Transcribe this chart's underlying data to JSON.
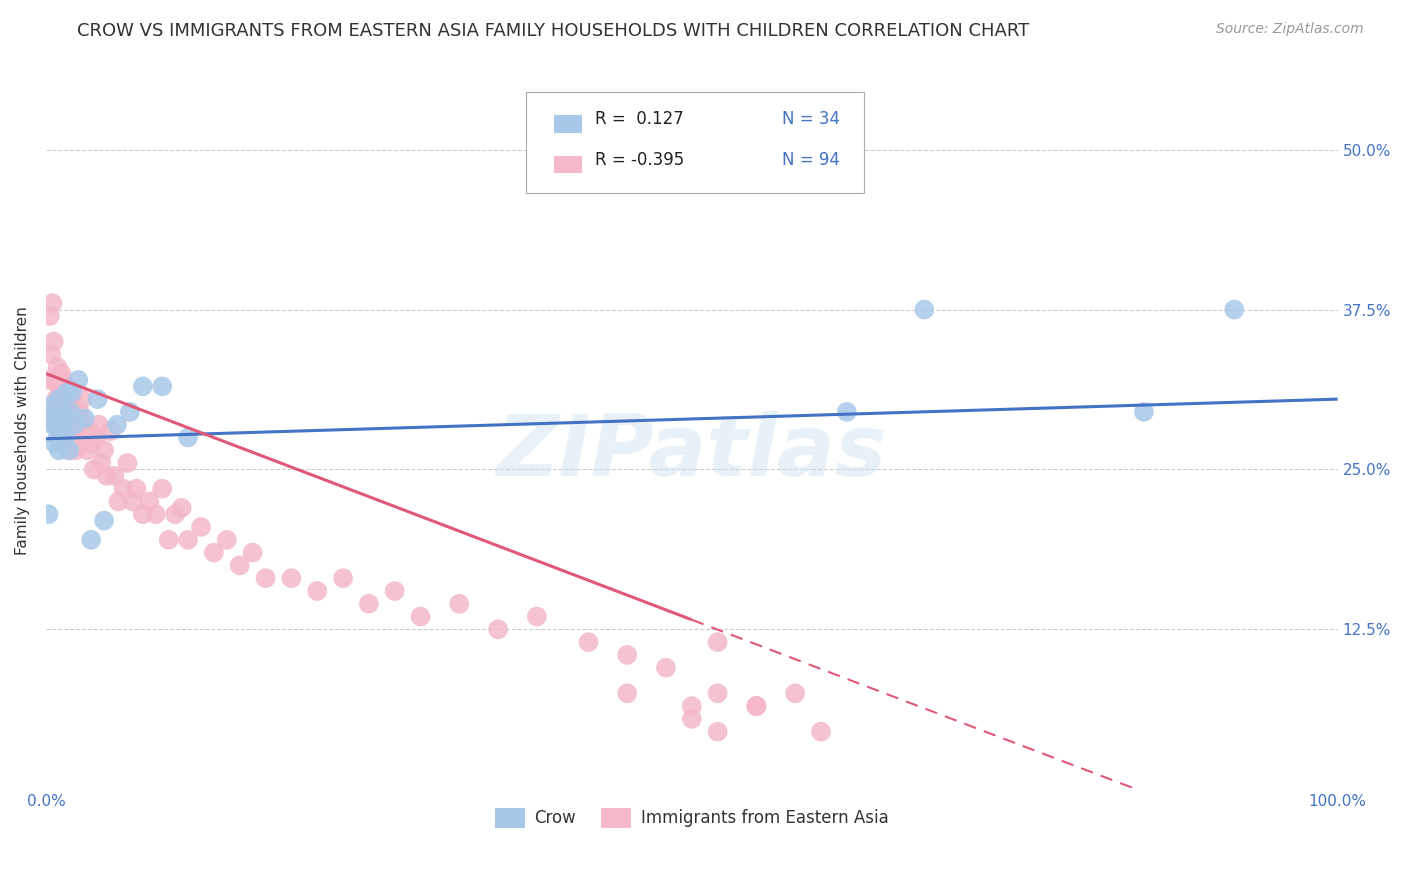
{
  "title": "CROW VS IMMIGRANTS FROM EASTERN ASIA FAMILY HOUSEHOLDS WITH CHILDREN CORRELATION CHART",
  "source": "Source: ZipAtlas.com",
  "ylabel": "Family Households with Children",
  "xlim": [
    0.0,
    1.0
  ],
  "ylim": [
    0.0,
    0.56
  ],
  "x_ticks": [
    0.0,
    0.1,
    0.2,
    0.3,
    0.4,
    0.5,
    0.6,
    0.7,
    0.8,
    0.9,
    1.0
  ],
  "x_tick_labels": [
    "0.0%",
    "",
    "",
    "",
    "",
    "",
    "",
    "",
    "",
    "",
    "100.0%"
  ],
  "y_ticks": [
    0.0,
    0.125,
    0.25,
    0.375,
    0.5
  ],
  "y_tick_labels": [
    "",
    "12.5%",
    "25.0%",
    "37.5%",
    "50.0%"
  ],
  "crow_color": "#a8c8e8",
  "immigrants_color": "#f4b8c8",
  "crow_line_color": "#4472c4",
  "immigrants_line_color": "#e05878",
  "crow_R": 0.127,
  "crow_N": 34,
  "immigrants_R": -0.395,
  "immigrants_N": 94,
  "crow_scatter_x": [
    0.002,
    0.003,
    0.004,
    0.005,
    0.006,
    0.007,
    0.008,
    0.009,
    0.01,
    0.01,
    0.011,
    0.012,
    0.013,
    0.014,
    0.015,
    0.016,
    0.018,
    0.019,
    0.02,
    0.022,
    0.025,
    0.03,
    0.035,
    0.04,
    0.045,
    0.055,
    0.065,
    0.075,
    0.09,
    0.11,
    0.62,
    0.68,
    0.85,
    0.92
  ],
  "crow_scatter_y": [
    0.215,
    0.29,
    0.3,
    0.285,
    0.295,
    0.27,
    0.285,
    0.275,
    0.305,
    0.265,
    0.29,
    0.28,
    0.295,
    0.285,
    0.275,
    0.31,
    0.265,
    0.295,
    0.31,
    0.285,
    0.32,
    0.29,
    0.195,
    0.305,
    0.21,
    0.285,
    0.295,
    0.315,
    0.315,
    0.275,
    0.295,
    0.375,
    0.295,
    0.375
  ],
  "immigrants_scatter_x": [
    0.002,
    0.003,
    0.004,
    0.005,
    0.006,
    0.007,
    0.008,
    0.008,
    0.009,
    0.009,
    0.01,
    0.01,
    0.011,
    0.011,
    0.012,
    0.012,
    0.013,
    0.013,
    0.014,
    0.015,
    0.015,
    0.016,
    0.016,
    0.017,
    0.017,
    0.018,
    0.018,
    0.019,
    0.019,
    0.02,
    0.021,
    0.021,
    0.022,
    0.023,
    0.023,
    0.024,
    0.025,
    0.026,
    0.027,
    0.028,
    0.03,
    0.032,
    0.034,
    0.035,
    0.037,
    0.039,
    0.041,
    0.043,
    0.045,
    0.047,
    0.05,
    0.053,
    0.056,
    0.06,
    0.063,
    0.067,
    0.07,
    0.075,
    0.08,
    0.085,
    0.09,
    0.095,
    0.1,
    0.105,
    0.11,
    0.12,
    0.13,
    0.14,
    0.15,
    0.16,
    0.17,
    0.19,
    0.21,
    0.23,
    0.25,
    0.27,
    0.29,
    0.32,
    0.35,
    0.38,
    0.42,
    0.45,
    0.48,
    0.52,
    0.5,
    0.45,
    0.52,
    0.55,
    0.58,
    0.6,
    0.55,
    0.5,
    0.52,
    0.55
  ],
  "immigrants_scatter_y": [
    0.32,
    0.37,
    0.34,
    0.38,
    0.35,
    0.295,
    0.32,
    0.305,
    0.33,
    0.285,
    0.315,
    0.295,
    0.31,
    0.28,
    0.325,
    0.295,
    0.32,
    0.285,
    0.295,
    0.31,
    0.275,
    0.315,
    0.285,
    0.275,
    0.305,
    0.295,
    0.265,
    0.305,
    0.275,
    0.295,
    0.275,
    0.305,
    0.285,
    0.265,
    0.295,
    0.28,
    0.27,
    0.295,
    0.27,
    0.305,
    0.285,
    0.265,
    0.28,
    0.27,
    0.25,
    0.275,
    0.285,
    0.255,
    0.265,
    0.245,
    0.28,
    0.245,
    0.225,
    0.235,
    0.255,
    0.225,
    0.235,
    0.215,
    0.225,
    0.215,
    0.235,
    0.195,
    0.215,
    0.22,
    0.195,
    0.205,
    0.185,
    0.195,
    0.175,
    0.185,
    0.165,
    0.165,
    0.155,
    0.165,
    0.145,
    0.155,
    0.135,
    0.145,
    0.125,
    0.135,
    0.115,
    0.105,
    0.095,
    0.115,
    0.055,
    0.075,
    0.075,
    0.065,
    0.075,
    0.045,
    0.065,
    0.065,
    0.045,
    0.065
  ],
  "imm_line_solid_xmax": 0.5,
  "watermark": "ZIPatlas",
  "grid_color": "#cccccc",
  "background_color": "#ffffff",
  "title_fontsize": 13,
  "axis_label_fontsize": 11,
  "tick_fontsize": 11,
  "legend_fontsize": 12
}
